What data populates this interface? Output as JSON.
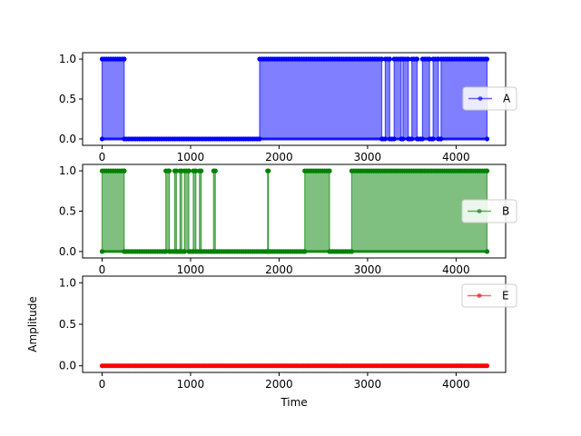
{
  "chart_data": [
    {
      "type": "area",
      "xlim": [
        -220,
        4560
      ],
      "ylim": [
        -0.08,
        1.08
      ],
      "x_ticks": [
        0,
        1000,
        2000,
        3000,
        4000
      ],
      "x_tick_labels": [
        "0",
        "1000",
        "2000",
        "3000",
        "4000"
      ],
      "y_ticks": [
        0,
        0.5,
        1
      ],
      "y_tick_labels": [
        "0.0",
        "0.5",
        "1.0"
      ],
      "xlabel": "",
      "ylabel": "",
      "legend_position": "right",
      "series": [
        {
          "name": "A",
          "color": "#0000ff",
          "x_max": 4350,
          "high_intervals": [
            [
              0,
              250
            ],
            [
              1780,
              3160
            ],
            [
              3200,
              3250
            ],
            [
              3300,
              3380
            ],
            [
              3400,
              3460
            ],
            [
              3500,
              3560
            ],
            [
              3620,
              3700
            ],
            [
              3740,
              3800
            ],
            [
              3830,
              4350
            ]
          ]
        }
      ]
    },
    {
      "type": "area",
      "xlim": [
        -220,
        4560
      ],
      "ylim": [
        -0.08,
        1.08
      ],
      "x_ticks": [
        0,
        1000,
        2000,
        3000,
        4000
      ],
      "x_tick_labels": [
        "0",
        "1000",
        "2000",
        "3000",
        "4000"
      ],
      "y_ticks": [
        0,
        0.5,
        1
      ],
      "y_tick_labels": [
        "0.0",
        "0.5",
        "1.0"
      ],
      "xlabel": "",
      "ylabel": "",
      "legend_position": "right",
      "series": [
        {
          "name": "B",
          "color": "#008000",
          "x_max": 4350,
          "high_intervals": [
            [
              0,
              250
            ],
            [
              720,
              760
            ],
            [
              820,
              840
            ],
            [
              880,
              900
            ],
            [
              930,
              980
            ],
            [
              1030,
              1060
            ],
            [
              1100,
              1120
            ],
            [
              1260,
              1280
            ],
            [
              1870,
              1880
            ],
            [
              2290,
              2570
            ],
            [
              2820,
              4350
            ]
          ]
        }
      ]
    },
    {
      "type": "area",
      "xlim": [
        -220,
        4560
      ],
      "ylim": [
        -0.08,
        1.08
      ],
      "x_ticks": [
        0,
        1000,
        2000,
        3000,
        4000
      ],
      "x_tick_labels": [
        "0",
        "1000",
        "2000",
        "3000",
        "4000"
      ],
      "y_ticks": [
        0,
        0.5,
        1
      ],
      "y_tick_labels": [
        "0.0",
        "0.5",
        "1.0"
      ],
      "xlabel": "Time",
      "ylabel": "Amplitude",
      "legend_position": "upper right",
      "series": [
        {
          "name": "E",
          "color": "#ff0000",
          "x_max": 4350,
          "high_intervals": []
        }
      ]
    }
  ]
}
